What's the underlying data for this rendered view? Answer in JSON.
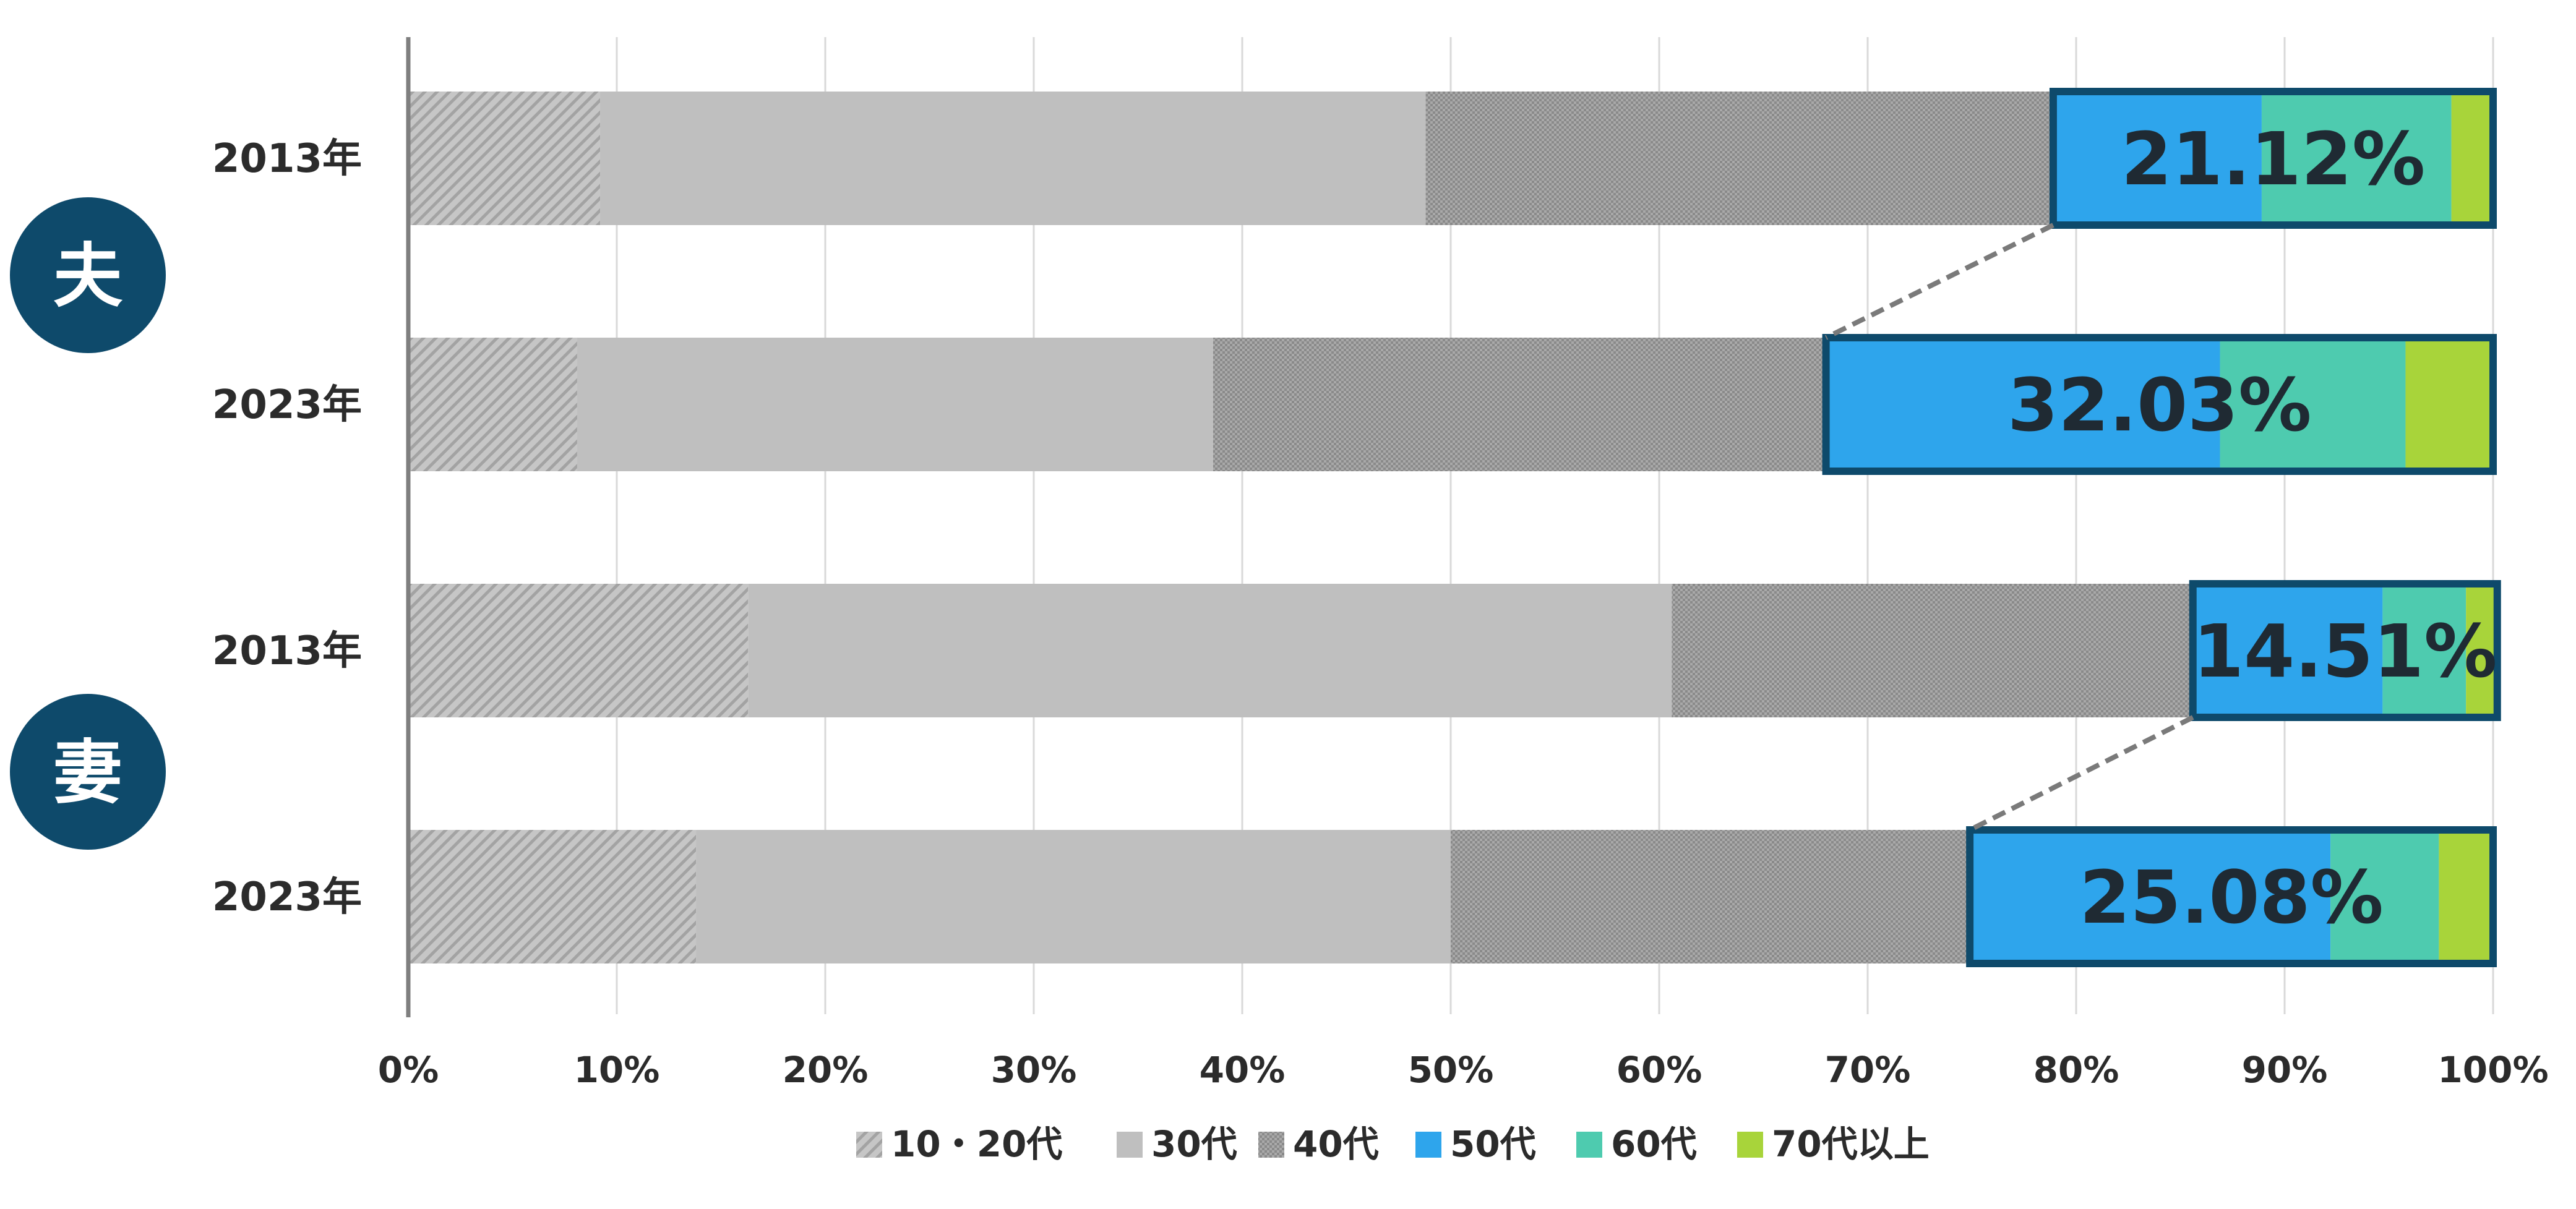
{
  "chart_data": {
    "type": "bar",
    "orientation": "horizontal",
    "stacked": "percent",
    "groups": [
      {
        "label": "夫",
        "rows": [
          0,
          1
        ]
      },
      {
        "label": "妻",
        "rows": [
          2,
          3
        ]
      }
    ],
    "categories": [
      "2013年",
      "2023年",
      "2013年",
      "2023年"
    ],
    "series": [
      {
        "name": "10・20代",
        "values": [
          9.2,
          8.1,
          16.3,
          13.8
        ],
        "color": "#b3b3b3",
        "pattern": "diagonal-hatch"
      },
      {
        "name": "30代",
        "values": [
          39.6,
          30.5,
          44.3,
          36.2
        ],
        "color": "#bfbfbf",
        "pattern": "solid"
      },
      {
        "name": "40代",
        "values": [
          30.1,
          29.4,
          25.0,
          24.9
        ],
        "color": "#9a9a9a",
        "pattern": "fine-dots"
      },
      {
        "name": "50代",
        "values": [
          10.0,
          18.9,
          9.1,
          17.3
        ],
        "color": "#2ea5ec",
        "pattern": "solid"
      },
      {
        "name": "60代",
        "values": [
          9.1,
          8.9,
          4.0,
          5.2
        ],
        "color": "#4ecbaf",
        "pattern": "solid"
      },
      {
        "name": "70代以上",
        "values": [
          2.0,
          4.2,
          1.5,
          2.6
        ],
        "color": "#a8d43a",
        "pattern": "solid"
      }
    ],
    "highlight": {
      "series_from": "50代",
      "labels": [
        "21.12%",
        "32.03%",
        "14.51%",
        "25.08%"
      ],
      "border_color": "#0e4a6b",
      "connector_pairs": [
        [
          0,
          1
        ],
        [
          2,
          3
        ]
      ]
    },
    "xaxis": {
      "ticks": [
        "0%",
        "10%",
        "20%",
        "30%",
        "40%",
        "50%",
        "60%",
        "70%",
        "80%",
        "90%",
        "100%"
      ],
      "range": [
        0,
        100
      ]
    },
    "grid": true,
    "legend_position": "bottom"
  }
}
